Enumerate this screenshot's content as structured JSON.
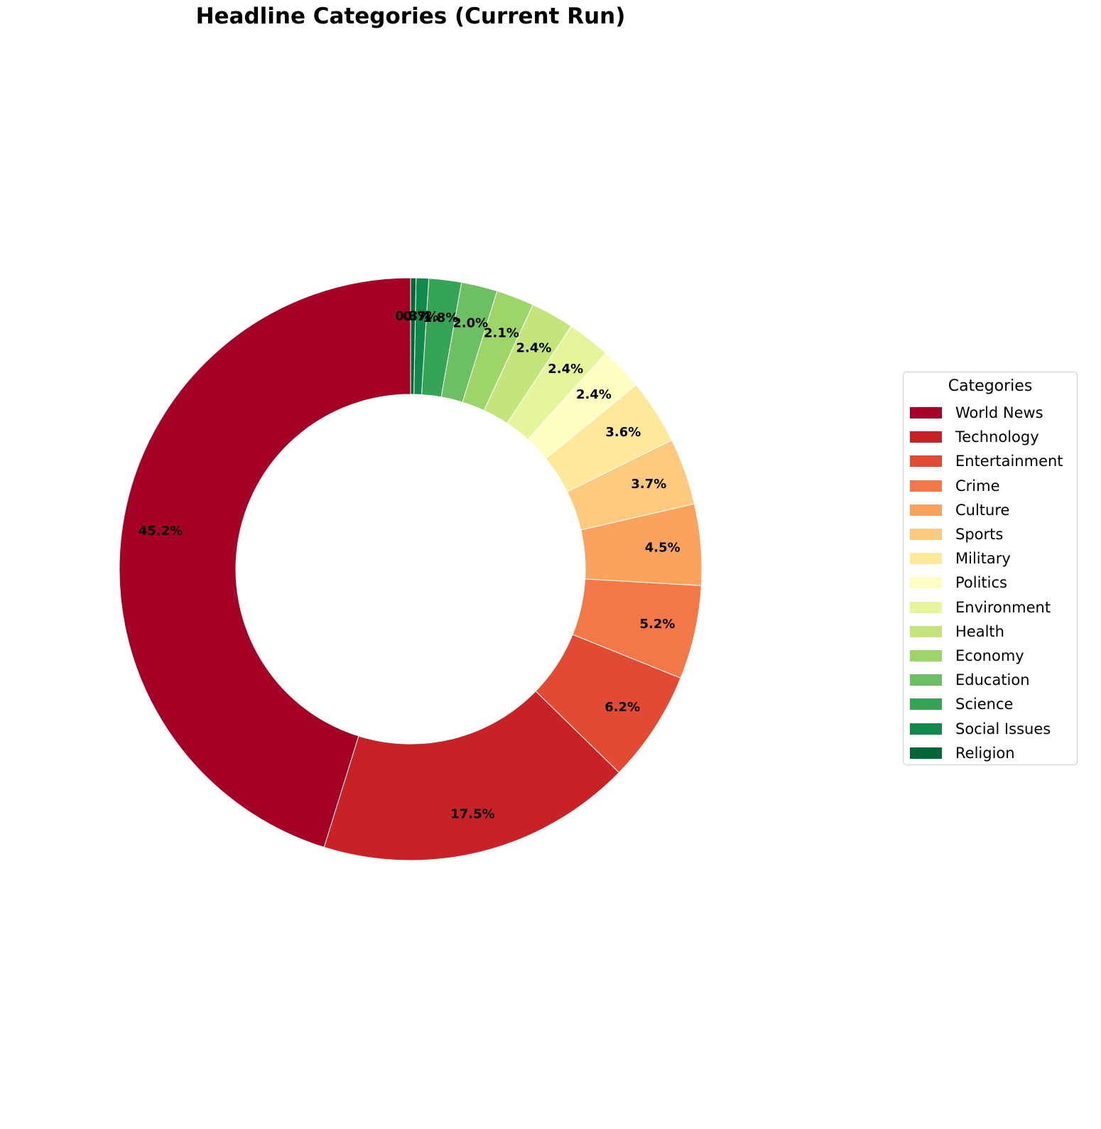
{
  "chart_data": {
    "type": "pie",
    "style": "donut",
    "title": "Headline Categories (Current Run)",
    "legend_title": "Categories",
    "legend_position": "right",
    "start_angle_deg": 90,
    "direction": "clockwise",
    "slices": [
      {
        "label": "World News",
        "value": 45.2,
        "display": "45.2%",
        "color": "#a50026"
      },
      {
        "label": "Technology",
        "value": 17.5,
        "display": "17.5%",
        "color": "#c82227"
      },
      {
        "label": "Entertainment",
        "value": 6.2,
        "display": "6.2%",
        "color": "#e34a33"
      },
      {
        "label": "Crime",
        "value": 5.2,
        "display": "5.2%",
        "color": "#f47748"
      },
      {
        "label": "Culture",
        "value": 4.5,
        "display": "4.5%",
        "color": "#f9a35e"
      },
      {
        "label": "Sports",
        "value": 3.7,
        "display": "3.7%",
        "color": "#fdc97d"
      },
      {
        "label": "Military",
        "value": 3.6,
        "display": "3.6%",
        "color": "#fee89a"
      },
      {
        "label": "Politics",
        "value": 2.4,
        "display": "2.4%",
        "color": "#fffec2"
      },
      {
        "label": "Environment",
        "value": 2.4,
        "display": "2.4%",
        "color": "#e6f59c"
      },
      {
        "label": "Health",
        "value": 2.4,
        "display": "2.4%",
        "color": "#c4e57c"
      },
      {
        "label": "Economy",
        "value": 2.1,
        "display": "2.1%",
        "color": "#9dd569"
      },
      {
        "label": "Education",
        "value": 2.0,
        "display": "2.0%",
        "color": "#6cbf63"
      },
      {
        "label": "Science",
        "value": 1.8,
        "display": "1.8%",
        "color": "#35a455"
      },
      {
        "label": "Social Issues",
        "value": 0.7,
        "display": "0.7%",
        "color": "#10894a"
      },
      {
        "label": "Religion",
        "value": 0.3,
        "display": "0.3%",
        "color": "#006837"
      }
    ]
  }
}
